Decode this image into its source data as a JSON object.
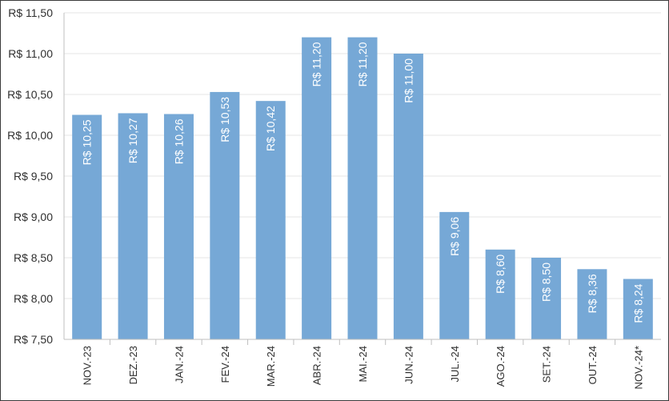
{
  "chart_data": {
    "type": "bar",
    "title": "",
    "xlabel": "",
    "ylabel": "",
    "categories": [
      "NOV.-23",
      "DEZ.-23",
      "JAN.-24",
      "FEV.-24",
      "MAR.-24",
      "ABR.-24",
      "MAI.-24",
      "JUN.-24",
      "JUL.-24",
      "AGO.-24",
      "SET.-24",
      "OUT.-24",
      "NOV.-24*"
    ],
    "values": [
      10.25,
      10.27,
      10.26,
      10.53,
      10.42,
      11.2,
      11.2,
      11.0,
      9.06,
      8.6,
      8.5,
      8.36,
      8.24
    ],
    "data_labels": [
      "R$ 10,25",
      "R$ 10,27",
      "R$ 10,26",
      "R$ 10,53",
      "R$ 10,42",
      "R$ 11,20",
      "R$ 11,20",
      "R$ 11,00",
      "R$ 9,06",
      "R$ 8,60",
      "R$ 8,50",
      "R$ 8,36",
      "R$ 8,24"
    ],
    "ylim": [
      7.5,
      11.5
    ],
    "yticks": [
      7.5,
      8.0,
      8.5,
      9.0,
      9.5,
      10.0,
      10.5,
      11.0,
      11.5
    ],
    "ytick_labels": [
      "R$ 7,50",
      "R$ 8,00",
      "R$ 8,50",
      "R$ 9,00",
      "R$ 9,50",
      "R$ 10,00",
      "R$ 10,50",
      "R$ 11,00",
      "R$ 11,50"
    ],
    "grid": true,
    "bar_color": "#76a8d6",
    "grid_color": "#e6e6e6",
    "axis_color": "#bfbfbf"
  }
}
